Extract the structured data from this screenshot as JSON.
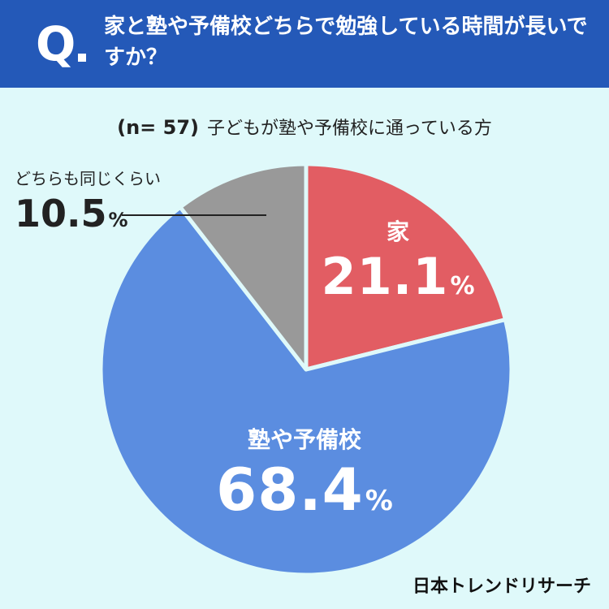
{
  "header": {
    "q_mark": "Q",
    "question": "家と塾や予備校どちらで勉強している時間が長いですか？"
  },
  "subtitle": {
    "sample": "(n= 57)",
    "text": "子どもが塾や予備校に通っている方"
  },
  "chart_data": {
    "type": "pie",
    "start_angle_deg": 0,
    "direction": "clockwise",
    "slices": [
      {
        "label": "家",
        "value": 21.1,
        "display": "21.1",
        "unit": "%",
        "color": "#e25d63"
      },
      {
        "label": "塾や予備校",
        "value": 68.4,
        "display": "68.4",
        "unit": "%",
        "color": "#5b8de0"
      },
      {
        "label": "どちらも同じくらい",
        "value": 10.5,
        "display": "10.5",
        "unit": "%",
        "color": "#999999"
      }
    ],
    "slice_border_color": "#dff9fa"
  },
  "brand": "日本トレンドリサーチ"
}
